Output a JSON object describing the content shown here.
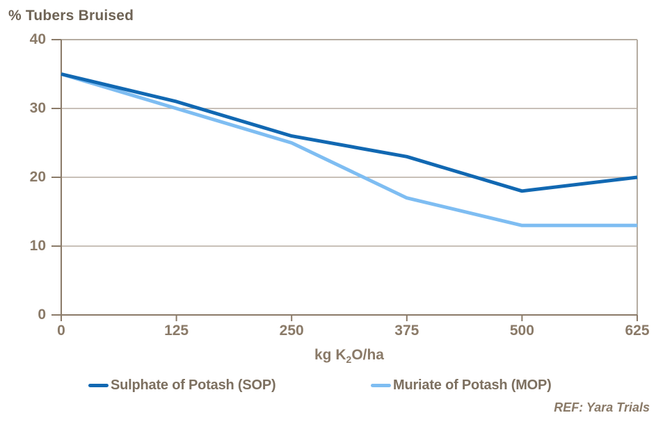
{
  "chart_data": {
    "type": "line",
    "title": "% Tubers Bruised",
    "xlabel": "kg K2O/ha",
    "xlabel_parts": {
      "prefix": "kg K",
      "sub": "2",
      "suffix": "O/ha"
    },
    "x": [
      0,
      125,
      250,
      375,
      500,
      625
    ],
    "xticks": [
      "0",
      "125",
      "250",
      "375",
      "500",
      "625"
    ],
    "ylim": [
      0,
      40
    ],
    "yticks": [
      40,
      30,
      20,
      10,
      0
    ],
    "grid": "horizontal",
    "legend_position": "bottom",
    "series": [
      {
        "name": "Sulphate of Potash (SOP)",
        "id": "sop",
        "color": "#1168b2",
        "values": [
          35,
          31,
          26,
          23,
          18,
          20
        ]
      },
      {
        "name": "Muriate of Potash (MOP)",
        "id": "mop",
        "color": "#7ebdf2",
        "values": [
          35,
          30,
          25,
          17,
          13,
          13
        ]
      }
    ],
    "footer": "REF: Yara Trials"
  },
  "colors": {
    "axis": "#8a7a68",
    "frame": "#b5aca1",
    "grid": "#b5aca1",
    "tick_text": "#8a7a68",
    "title_text": "#6e6355",
    "legend_text": "#7d7060",
    "background": "#ffffff"
  }
}
